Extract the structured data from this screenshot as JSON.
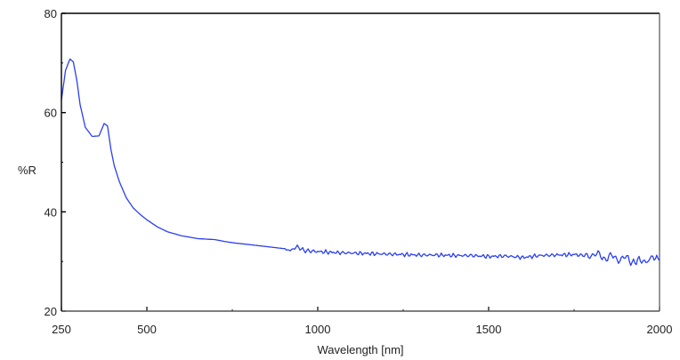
{
  "chart_data": {
    "type": "line",
    "title": "",
    "xlabel": "Wavelength [nm]",
    "ylabel": "%R",
    "xlim": [
      250,
      2000
    ],
    "ylim": [
      20,
      80
    ],
    "xticks": [
      250,
      500,
      1000,
      1500,
      2000
    ],
    "xticks_minor": [
      750,
      1250,
      1750
    ],
    "yticks": [
      20,
      40,
      60,
      80
    ],
    "yticks_minor": [
      30,
      50,
      70
    ],
    "grid": false,
    "legend": null,
    "line_color": "#2a3ff0",
    "series": [
      {
        "name": "%R",
        "x": [
          250,
          262,
          275,
          285,
          295,
          305,
          320,
          340,
          360,
          375,
          385,
          395,
          405,
          420,
          440,
          460,
          480,
          500,
          530,
          560,
          600,
          650,
          700,
          730,
          760,
          800,
          850,
          900,
          920,
          940,
          960,
          1000,
          1050,
          1100,
          1150,
          1200,
          1250,
          1300,
          1350,
          1400,
          1450,
          1500,
          1550,
          1600,
          1650,
          1700,
          1750,
          1780,
          1800,
          1820,
          1840,
          1860,
          1880,
          1900,
          1920,
          1940,
          1960,
          1980,
          2000
        ],
        "y": [
          62.5,
          68.5,
          70.8,
          70.2,
          66.5,
          61.5,
          57.0,
          55.2,
          55.3,
          57.8,
          57.3,
          52.5,
          49.2,
          46.0,
          42.8,
          40.8,
          39.5,
          38.4,
          37.0,
          36.0,
          35.2,
          34.6,
          34.4,
          34.0,
          33.7,
          33.4,
          33.0,
          32.6,
          32.2,
          33.0,
          32.2,
          32.0,
          31.8,
          31.7,
          31.6,
          31.5,
          31.4,
          31.3,
          31.3,
          31.2,
          31.2,
          31.0,
          31.1,
          30.8,
          31.2,
          31.3,
          31.4,
          31.2,
          31.0,
          31.8,
          30.2,
          31.5,
          30.0,
          31.2,
          29.6,
          30.4,
          29.8,
          31.0,
          30.2
        ]
      }
    ]
  },
  "axes": {
    "x_title": "Wavelength [nm]",
    "y_title": "%R"
  }
}
